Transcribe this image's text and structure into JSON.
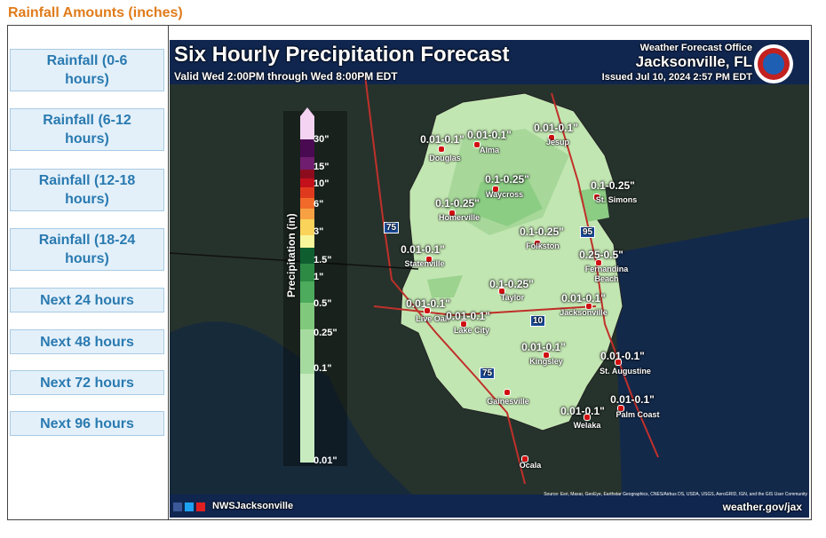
{
  "header": {
    "title": "Rainfall Amounts (inches)"
  },
  "nav": [
    "Rainfall (0-6 hours)",
    "Rainfall (6-12 hours)",
    "Rainfall (12-18 hours)",
    "Rainfall (18-24 hours)",
    "Next 24 hours",
    "Next 48 hours",
    "Next 72 hours",
    "Next 96 hours"
  ],
  "map": {
    "title": "Six Hourly Precipitation Forecast",
    "valid": "Valid Wed 2:00PM through Wed 8:00PM EDT",
    "office": "Weather Forecast Office",
    "office_city": "Jacksonville, FL",
    "issued": "Issued Jul 10, 2024 2:57 PM EDT",
    "legend": {
      "title": "Precipitation (in)",
      "labels": [
        "30\"",
        "15\"",
        "10\"",
        "6\"",
        "3\"",
        "1.5\"",
        "1\"",
        "0.5\"",
        "0.25\"",
        "0.1\"",
        "0.01\""
      ]
    },
    "highways": [
      "75",
      "95",
      "10",
      "75"
    ],
    "places": [
      {
        "name": "Douglas",
        "amount": "0.01-0.1\""
      },
      {
        "name": "Alma",
        "amount": "0.01-0.1\""
      },
      {
        "name": "Jesup",
        "amount": "0.01-0.1\""
      },
      {
        "name": "Waycross",
        "amount": "0.1-0.25\""
      },
      {
        "name": "Homerville",
        "amount": "0.1-0.25\""
      },
      {
        "name": "St. Simons",
        "amount": "0.1-0.25\""
      },
      {
        "name": "Folkston",
        "amount": "0.1-0.25\""
      },
      {
        "name": "Statenville",
        "amount": "0.01-0.1\""
      },
      {
        "name": "Fernandina Beach",
        "amount": "0.25-0.5\""
      },
      {
        "name": "Taylor",
        "amount": "0.1-0.25\""
      },
      {
        "name": "Jacksonville",
        "amount": "0.01-0.1\""
      },
      {
        "name": "Live Oak",
        "amount": "0.01-0.1\""
      },
      {
        "name": "Lake City",
        "amount": "0.01-0.1\""
      },
      {
        "name": "Kingsley",
        "amount": "0.01-0.1\""
      },
      {
        "name": "St. Augustine",
        "amount": "0.01-0.1\""
      },
      {
        "name": "Welaka",
        "amount": "0.01-0.1\""
      },
      {
        "name": "Palm Coast",
        "amount": "0.01-0.1\""
      },
      {
        "name": "Gainesville"
      },
      {
        "name": "Ocala"
      }
    ],
    "social": "NWSJacksonville",
    "url": "weather.gov/jax",
    "source": "Source: Esri, Maxar, GeoEye, Earthstar Geographics, CNES/Airbus DS, USDA, USGS, AeroGRID, IGN, and the GIS User Community"
  }
}
